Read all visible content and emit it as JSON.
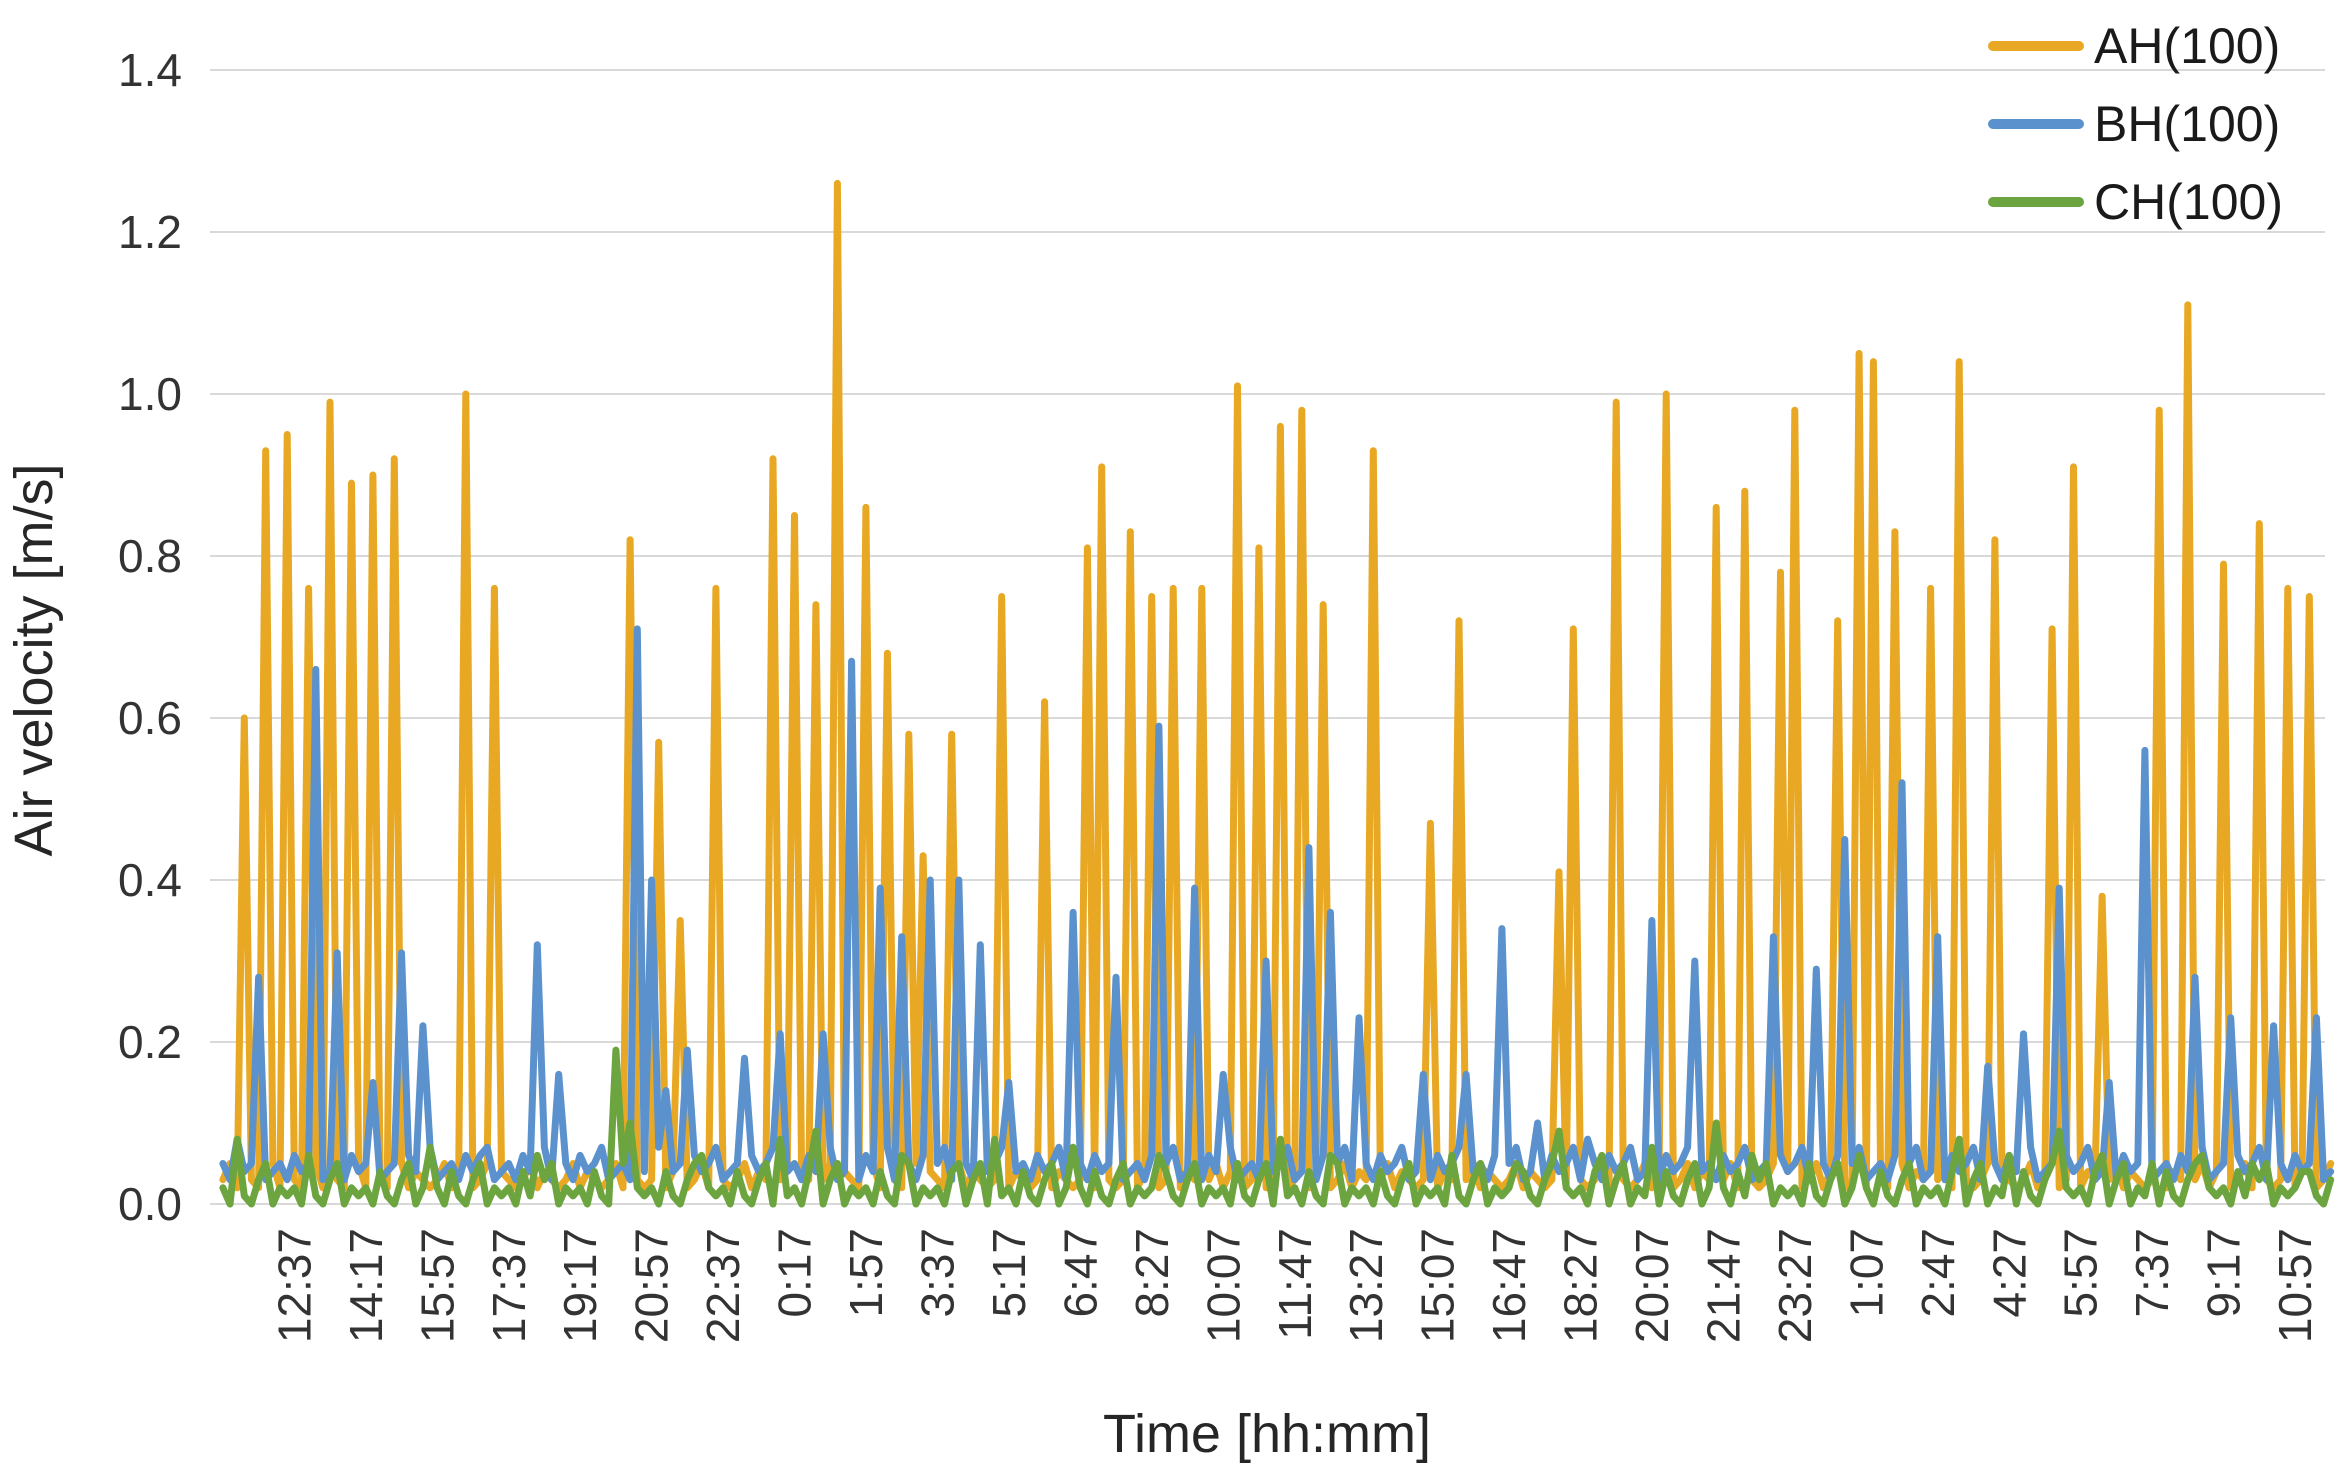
{
  "chart_data": {
    "type": "line",
    "title": "",
    "xlabel": "Time [hh:mm]",
    "ylabel": "Air velocity [m/s]",
    "ylim": [
      0,
      1.4
    ],
    "y_ticks": [
      "0.0",
      "0.2",
      "0.4",
      "0.6",
      "0.8",
      "1.0",
      "1.2",
      "1.4"
    ],
    "x_tick_labels": [
      "12:37",
      "14:17",
      "15:57",
      "17:37",
      "19:17",
      "20:57",
      "22:37",
      "0:17",
      "1:57",
      "3:37",
      "5:17",
      "6:47",
      "8:27",
      "10:07",
      "11:47",
      "13:27",
      "15:07",
      "16:47",
      "18:27",
      "20:07",
      "21:47",
      "23:27",
      "1:07",
      "2:47",
      "4:27",
      "5:57",
      "7:37",
      "9:17",
      "10:57"
    ],
    "n_points": 296,
    "label_start_index": 10,
    "label_interval": 10,
    "grid": "horizontal",
    "gridline_color": "#d9d9d9",
    "legend_position": "top-right",
    "series": [
      {
        "name": "AH(100)",
        "color": "#e8a823",
        "baseline_pattern": [
          0.03,
          0.05,
          0.02,
          0.04,
          0.03,
          0.02
        ],
        "peaks": [
          [
            3,
            0.6
          ],
          [
            6,
            0.93
          ],
          [
            9,
            0.95
          ],
          [
            12,
            0.76
          ],
          [
            15,
            0.99
          ],
          [
            18,
            0.89
          ],
          [
            21,
            0.9
          ],
          [
            24,
            0.92
          ],
          [
            34,
            1.0
          ],
          [
            38,
            0.76
          ],
          [
            57,
            0.82
          ],
          [
            61,
            0.57
          ],
          [
            64,
            0.35
          ],
          [
            69,
            0.76
          ],
          [
            77,
            0.92
          ],
          [
            80,
            0.85
          ],
          [
            83,
            0.74
          ],
          [
            86,
            1.26
          ],
          [
            90,
            0.86
          ],
          [
            93,
            0.68
          ],
          [
            96,
            0.58
          ],
          [
            98,
            0.43
          ],
          [
            102,
            0.58
          ],
          [
            109,
            0.75
          ],
          [
            115,
            0.62
          ],
          [
            121,
            0.81
          ],
          [
            123,
            0.91
          ],
          [
            127,
            0.83
          ],
          [
            130,
            0.75
          ],
          [
            133,
            0.76
          ],
          [
            137,
            0.76
          ],
          [
            142,
            1.01
          ],
          [
            145,
            0.81
          ],
          [
            148,
            0.96
          ],
          [
            151,
            0.98
          ],
          [
            154,
            0.74
          ],
          [
            161,
            0.93
          ],
          [
            169,
            0.47
          ],
          [
            173,
            0.72
          ],
          [
            187,
            0.41
          ],
          [
            189,
            0.71
          ],
          [
            195,
            0.99
          ],
          [
            202,
            1.0
          ],
          [
            209,
            0.86
          ],
          [
            213,
            0.88
          ],
          [
            218,
            0.78
          ],
          [
            220,
            0.98
          ],
          [
            226,
            0.72
          ],
          [
            229,
            1.05
          ],
          [
            231,
            1.04
          ],
          [
            234,
            0.83
          ],
          [
            239,
            0.76
          ],
          [
            243,
            1.04
          ],
          [
            248,
            0.82
          ],
          [
            256,
            0.71
          ],
          [
            259,
            0.91
          ],
          [
            263,
            0.38
          ],
          [
            271,
            0.98
          ],
          [
            275,
            1.11
          ],
          [
            280,
            0.79
          ],
          [
            285,
            0.84
          ],
          [
            289,
            0.76
          ],
          [
            292,
            0.75
          ]
        ]
      },
      {
        "name": "BH(100)",
        "color": "#5b91cc",
        "baseline_pattern": [
          0.05,
          0.03,
          0.06,
          0.04,
          0.05,
          0.07,
          0.03,
          0.04
        ],
        "peaks": [
          [
            2,
            0.08
          ],
          [
            5,
            0.28
          ],
          [
            13,
            0.66
          ],
          [
            16,
            0.31
          ],
          [
            21,
            0.15
          ],
          [
            25,
            0.31
          ],
          [
            28,
            0.22
          ],
          [
            36,
            0.06
          ],
          [
            40,
            0.05
          ],
          [
            44,
            0.32
          ],
          [
            47,
            0.16
          ],
          [
            58,
            0.71
          ],
          [
            60,
            0.4
          ],
          [
            62,
            0.14
          ],
          [
            65,
            0.19
          ],
          [
            73,
            0.18
          ],
          [
            78,
            0.21
          ],
          [
            84,
            0.21
          ],
          [
            88,
            0.67
          ],
          [
            92,
            0.39
          ],
          [
            95,
            0.33
          ],
          [
            99,
            0.4
          ],
          [
            103,
            0.4
          ],
          [
            106,
            0.32
          ],
          [
            110,
            0.15
          ],
          [
            119,
            0.36
          ],
          [
            125,
            0.28
          ],
          [
            131,
            0.59
          ],
          [
            136,
            0.39
          ],
          [
            140,
            0.16
          ],
          [
            146,
            0.3
          ],
          [
            152,
            0.44
          ],
          [
            155,
            0.36
          ],
          [
            159,
            0.23
          ],
          [
            168,
            0.16
          ],
          [
            174,
            0.16
          ],
          [
            179,
            0.34
          ],
          [
            184,
            0.1
          ],
          [
            191,
            0.08
          ],
          [
            200,
            0.35
          ],
          [
            206,
            0.3
          ],
          [
            217,
            0.33
          ],
          [
            223,
            0.29
          ],
          [
            227,
            0.45
          ],
          [
            235,
            0.52
          ],
          [
            240,
            0.33
          ],
          [
            247,
            0.17
          ],
          [
            252,
            0.21
          ],
          [
            257,
            0.39
          ],
          [
            264,
            0.15
          ],
          [
            269,
            0.56
          ],
          [
            276,
            0.28
          ],
          [
            281,
            0.23
          ],
          [
            287,
            0.22
          ],
          [
            293,
            0.23
          ]
        ]
      },
      {
        "name": "CH(100)",
        "color": "#6ca43f",
        "baseline_pattern": [
          0.02,
          0.0,
          0.04,
          0.01,
          0.0,
          0.03,
          0.05,
          0.0,
          0.02,
          0.01
        ],
        "peaks": [
          [
            2,
            0.08
          ],
          [
            12,
            0.06
          ],
          [
            29,
            0.07
          ],
          [
            44,
            0.06
          ],
          [
            55,
            0.19
          ],
          [
            57,
            0.1
          ],
          [
            67,
            0.06
          ],
          [
            78,
            0.08
          ],
          [
            83,
            0.09
          ],
          [
            95,
            0.06
          ],
          [
            103,
            0.05
          ],
          [
            108,
            0.08
          ],
          [
            119,
            0.07
          ],
          [
            131,
            0.06
          ],
          [
            142,
            0.05
          ],
          [
            148,
            0.08
          ],
          [
            155,
            0.06
          ],
          [
            166,
            0.05
          ],
          [
            172,
            0.06
          ],
          [
            181,
            0.05
          ],
          [
            187,
            0.09
          ],
          [
            193,
            0.06
          ],
          [
            200,
            0.07
          ],
          [
            209,
            0.1
          ],
          [
            214,
            0.06
          ],
          [
            222,
            0.05
          ],
          [
            229,
            0.06
          ],
          [
            236,
            0.05
          ],
          [
            243,
            0.08
          ],
          [
            250,
            0.06
          ],
          [
            257,
            0.09
          ],
          [
            263,
            0.06
          ],
          [
            270,
            0.05
          ],
          [
            277,
            0.06
          ],
          [
            284,
            0.05
          ],
          [
            291,
            0.04
          ]
        ]
      }
    ]
  },
  "colors": {
    "background": "#ffffff",
    "gridline": "#d9d9d9",
    "tick_text": "#333333",
    "title_text": "#262626"
  }
}
